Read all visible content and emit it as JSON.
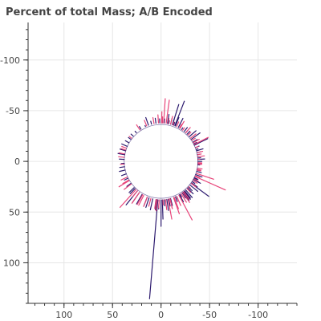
{
  "chart_data": {
    "type": "radial-spike",
    "title": "Percent of total Mass; A/B Encoded",
    "xlim": [
      137,
      -140
    ],
    "ylim": [
      -137,
      140
    ],
    "x_axis_reversed": true,
    "y_axis_reversed": true,
    "grid": true,
    "inner_radius": 38,
    "x_ticks": [
      100,
      50,
      0,
      -50,
      -100
    ],
    "x_tick_labels": [
      "100",
      "50",
      "0",
      "-50",
      "-100"
    ],
    "y_ticks": [
      -100,
      -50,
      0,
      50,
      100
    ],
    "y_tick_labels": [
      "-100",
      "-50",
      "0",
      "50",
      "100"
    ],
    "colors": {
      "A": "#2c1a6e",
      "B": "#e8457a"
    },
    "series": [
      {
        "key": "A",
        "segments": [
          [
            5,
            136
          ],
          [
            -2,
            57
          ],
          [
            -9,
            49
          ],
          [
            -12,
            45
          ],
          [
            -20,
            45
          ],
          [
            -23,
            43
          ],
          [
            -31,
            41
          ],
          [
            -35,
            44
          ],
          [
            -36,
            46
          ],
          [
            -37,
            48
          ],
          [
            -39,
            48
          ],
          [
            -42,
            48
          ],
          [
            -46,
            46
          ],
          [
            -48,
            43
          ],
          [
            -58,
            41
          ],
          [
            -62,
            44
          ],
          [
            -75,
            43
          ],
          [
            -90,
            42
          ],
          [
            -95,
            41
          ],
          [
            -103,
            42
          ],
          [
            -106,
            45
          ],
          [
            -111,
            42
          ],
          [
            -117,
            41
          ],
          [
            -125,
            49
          ],
          [
            -130,
            47
          ],
          [
            -135,
            42
          ],
          [
            -141,
            43
          ],
          [
            -146,
            40
          ],
          [
            -152,
            48
          ],
          [
            -157,
            47
          ],
          [
            -162,
            44
          ],
          [
            -168,
            41
          ],
          [
            -175,
            42
          ],
          [
            -178,
            41
          ],
          [
            178,
            42
          ],
          [
            172,
            43
          ],
          [
            165,
            41
          ],
          [
            155,
            39
          ],
          [
            147,
            41
          ],
          [
            138,
            40
          ],
          [
            131,
            41
          ],
          [
            125,
            41
          ],
          [
            119,
            42
          ],
          [
            113,
            44
          ],
          [
            106,
            44
          ],
          [
            100,
            45
          ],
          [
            93,
            43
          ],
          [
            87,
            41
          ],
          [
            82,
            43
          ],
          [
            77,
            44
          ],
          [
            71,
            43
          ],
          [
            64,
            42
          ],
          [
            55,
            43
          ],
          [
            47,
            45
          ],
          [
            45,
            45
          ],
          [
            40,
            56
          ],
          [
            36,
            50
          ],
          [
            31,
            49
          ],
          [
            22,
            47
          ],
          [
            19,
            48
          ],
          [
            13,
            49
          ],
          [
            7,
            48
          ],
          [
            3,
            47
          ],
          [
            -5,
            44
          ],
          [
            -15,
            45
          ],
          [
            -25,
            41
          ],
          [
            -29,
            41
          ],
          [
            -40,
            47
          ],
          [
            -52,
            48
          ],
          [
            -56,
            45
          ],
          [
            -65,
            42
          ],
          [
            -70,
            45
          ],
          [
            -77,
            41
          ],
          [
            -85,
            40
          ],
          [
            -100,
            40
          ],
          [
            -120,
            43
          ],
          [
            -138,
            41
          ],
          [
            -160,
            41
          ],
          [
            -170,
            47
          ],
          [
            -165,
            44
          ],
          [
            -55,
            60
          ],
          [
            -158,
            64
          ],
          [
            -115,
            41
          ],
          [
            -93,
            45
          ],
          [
            -64,
            41
          ],
          [
            -62,
            46
          ],
          [
            160,
            46
          ],
          [
            -108,
            40
          ],
          [
            -30,
            46
          ],
          [
            -162,
            59
          ],
          [
            -115,
            53
          ],
          [
            0,
            64
          ]
        ]
      },
      {
        "key": "B",
        "segments": [
          [
            -67,
            72
          ],
          [
            -72,
            57
          ],
          [
            -80,
            43
          ],
          [
            -86,
            42
          ],
          [
            -97,
            45
          ],
          [
            -103,
            44
          ],
          [
            -119,
            45
          ],
          [
            -127,
            45
          ],
          [
            -133,
            42
          ],
          [
            -149,
            46
          ],
          [
            -155,
            43
          ],
          [
            -165,
            46
          ],
          [
            -172,
            61
          ],
          [
            -176,
            62
          ],
          [
            -179,
            49
          ],
          [
            176,
            46
          ],
          [
            169,
            44
          ],
          [
            157,
            44
          ],
          [
            145,
            44
          ],
          [
            127,
            41
          ],
          [
            110,
            43
          ],
          [
            101,
            44
          ],
          [
            96,
            44
          ],
          [
            86,
            42
          ],
          [
            66,
            45
          ],
          [
            61,
            45
          ],
          [
            43,
            62
          ],
          [
            36,
            51
          ],
          [
            28,
            49
          ],
          [
            8,
            47
          ],
          [
            6,
            49
          ],
          [
            -7,
            48
          ],
          [
            -14,
            48
          ],
          [
            -21,
            50
          ],
          [
            -33,
            48
          ],
          [
            -38,
            47
          ],
          [
            -45,
            43
          ],
          [
            -55,
            44
          ],
          [
            -60,
            43
          ],
          [
            -68,
            43
          ],
          [
            -78,
            42
          ],
          [
            -88,
            42
          ],
          [
            -93,
            40
          ],
          [
            -111,
            41
          ],
          [
            -123,
            42
          ],
          [
            -144,
            41
          ],
          [
            -161,
            41
          ],
          [
            -169,
            43
          ],
          [
            -116,
            54
          ],
          [
            30,
            49
          ],
          [
            54,
            47
          ],
          [
            -138,
            45
          ],
          [
            -77,
            42
          ],
          [
            -178,
            44
          ],
          [
            -150,
            42
          ],
          [
            -100,
            42
          ],
          [
            -87,
            42
          ],
          [
            -63,
            43
          ],
          [
            -49,
            40
          ],
          [
            -36,
            50
          ],
          [
            -20,
            55
          ],
          [
            -11,
            58
          ],
          [
            -3,
            43
          ],
          [
            3,
            46
          ],
          [
            16,
            46
          ],
          [
            22,
            48
          ],
          [
            60,
            50
          ],
          [
            107,
            43
          ],
          [
            -25,
            48
          ],
          [
            -14,
            48
          ],
          [
            -29,
            66
          ],
          [
            40,
            45
          ]
        ]
      }
    ]
  }
}
